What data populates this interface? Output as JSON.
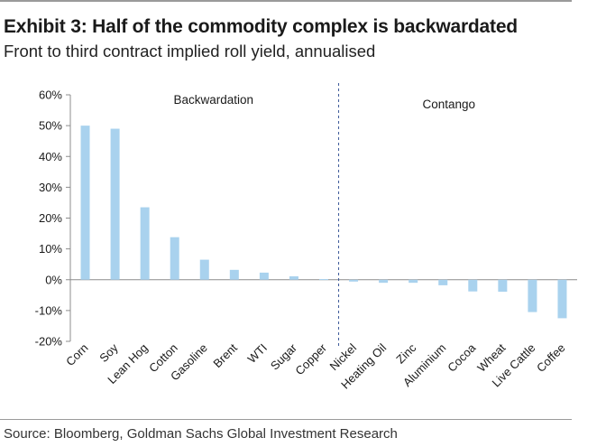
{
  "title": "Exhibit 3: Half of the commodity complex is backwardated",
  "subtitle": "Front to third contract implied roll yield, annualised",
  "source": "Source: Bloomberg, Goldman Sachs Global Investment Research",
  "colors": {
    "bar": "#a9d2ee",
    "axis": "#8c8c8c",
    "divider": "#3d5a99"
  },
  "chart_data": {
    "type": "bar",
    "categories": [
      "Corn",
      "Soy",
      "Lean Hog",
      "Cotton",
      "Gasoline",
      "Brent",
      "WTI",
      "Sugar",
      "Copper",
      "Nickel",
      "Heating Oil",
      "Zinc",
      "Aluminium",
      "Cocoa",
      "Wheat",
      "Live Cattle",
      "Coffee"
    ],
    "values": [
      50.0,
      49.0,
      23.5,
      13.8,
      6.5,
      3.2,
      2.3,
      1.1,
      0.2,
      -0.6,
      -1.0,
      -1.0,
      -1.8,
      -3.8,
      -3.9,
      -10.5,
      -12.5
    ],
    "ylim": [
      -20,
      60
    ],
    "yticks": [
      -20,
      -10,
      0,
      10,
      20,
      30,
      40,
      50,
      60
    ],
    "ytick_labels": [
      "-20%",
      "-10%",
      "0%",
      "10%",
      "20%",
      "30%",
      "40%",
      "50%",
      "60%"
    ],
    "grid": false,
    "annotations": [
      {
        "text": "Backwardation",
        "region": "left"
      },
      {
        "text": "Contango",
        "region": "right"
      }
    ],
    "divider_after": "Copper"
  }
}
